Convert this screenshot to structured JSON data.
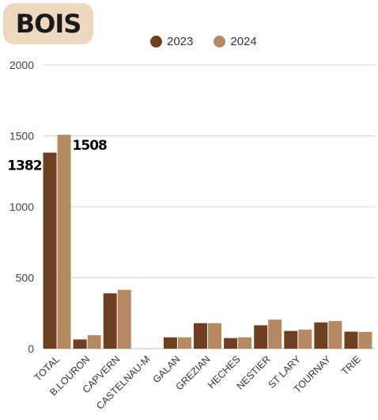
{
  "chart_data": {
    "type": "bar",
    "title": "BOIS",
    "categories": [
      "TOTAL",
      "B.LOURON",
      "CAPVERN",
      "CASTELNAU-M",
      "GALAN",
      "GREZIAN",
      "HECHES",
      "NESTIER",
      "ST LARY",
      "TOURNAY",
      "TRIE"
    ],
    "series": [
      {
        "name": "2023",
        "color": "#6f3f22",
        "values": [
          1382,
          65,
          390,
          0,
          80,
          180,
          75,
          165,
          125,
          185,
          120
        ]
      },
      {
        "name": "2024",
        "color": "#b58a63",
        "values": [
          1508,
          95,
          415,
          0,
          80,
          180,
          80,
          205,
          135,
          195,
          118
        ]
      }
    ],
    "data_labels": [
      {
        "series": 0,
        "index": 0,
        "text": "1382"
      },
      {
        "series": 1,
        "index": 0,
        "text": "1508"
      }
    ],
    "yticks": [
      "0",
      "500",
      "1000",
      "1500",
      "2000"
    ],
    "ylim": [
      0,
      2000
    ],
    "grid": true,
    "legend_position": "top-center"
  }
}
